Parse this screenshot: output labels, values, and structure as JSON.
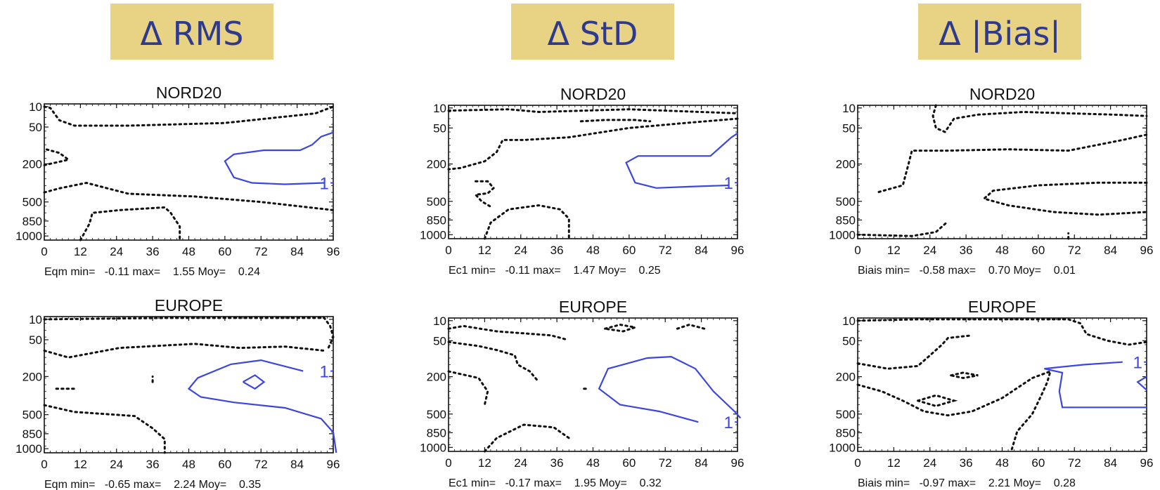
{
  "headers": [
    "Δ RMS",
    "Δ StD",
    "Δ |Bias|"
  ],
  "colors": {
    "header_bg": "#e8d283",
    "header_text": "#2e3a8c",
    "contour_positive": "#3b46e0",
    "contour_negative": "#111111"
  },
  "chart_data": [
    {
      "type": "contour",
      "title": "NORD20",
      "x_ticks": [
        "0",
        "12",
        "24",
        "36",
        "48",
        "60",
        "72",
        "84",
        "96"
      ],
      "y_ticks": [
        "10",
        "50",
        "200",
        "500",
        "850",
        "1000"
      ],
      "xlim": [
        0,
        96
      ],
      "ylim": [
        0,
        1
      ],
      "stats": {
        "name": "Eqm",
        "min": "-0.11",
        "max": "1.55",
        "moy": "0.24"
      },
      "contour_label": "1",
      "contour_label_at": [
        93,
        0.42
      ],
      "positive_contours": [
        [
          [
            93,
            0.42
          ],
          [
            80,
            0.41
          ],
          [
            69,
            0.42
          ],
          [
            63,
            0.46
          ],
          [
            60,
            0.58
          ],
          [
            63,
            0.63
          ],
          [
            73,
            0.66
          ],
          [
            85,
            0.66
          ],
          [
            89,
            0.7
          ],
          [
            92,
            0.76
          ],
          [
            96,
            0.79
          ]
        ]
      ],
      "negative_contours": [
        [
          [
            0,
            0.98
          ],
          [
            2,
            0.97
          ],
          [
            5,
            0.88
          ],
          [
            10,
            0.84
          ],
          [
            28,
            0.84
          ],
          [
            60,
            0.86
          ],
          [
            90,
            0.93
          ],
          [
            96,
            0.98
          ]
        ],
        [
          [
            0,
            0.35
          ],
          [
            5,
            0.38
          ],
          [
            14,
            0.42
          ],
          [
            28,
            0.34
          ],
          [
            50,
            0.32
          ],
          [
            72,
            0.28
          ],
          [
            96,
            0.22
          ]
        ],
        [
          [
            0,
            0.55
          ],
          [
            8,
            0.59
          ],
          [
            5,
            0.64
          ],
          [
            0,
            0.67
          ]
        ],
        [
          [
            12,
            0
          ],
          [
            15,
            0.12
          ],
          [
            16,
            0.2
          ],
          [
            25,
            0.22
          ],
          [
            40,
            0.24
          ],
          [
            42,
            0.2
          ],
          [
            45,
            0.1
          ],
          [
            45,
            0
          ]
        ]
      ]
    },
    {
      "type": "contour",
      "title": "NORD20",
      "x_ticks": [
        "0",
        "12",
        "24",
        "36",
        "48",
        "60",
        "72",
        "84",
        "96"
      ],
      "y_ticks": [
        "10",
        "50",
        "200",
        "500",
        "850",
        "1000"
      ],
      "xlim": [
        0,
        96
      ],
      "ylim": [
        0,
        1
      ],
      "stats": {
        "name": "Ec1",
        "min": "-0.11",
        "max": "1.47",
        "moy": "0.25"
      },
      "contour_label": "1",
      "contour_label_at": [
        93,
        0.42
      ],
      "positive_contours": [
        [
          [
            93,
            0.4
          ],
          [
            80,
            0.39
          ],
          [
            69,
            0.38
          ],
          [
            62,
            0.42
          ],
          [
            59,
            0.57
          ],
          [
            63,
            0.62
          ],
          [
            75,
            0.62
          ],
          [
            87,
            0.62
          ],
          [
            91,
            0.7
          ],
          [
            94,
            0.76
          ],
          [
            96,
            0.79
          ]
        ]
      ],
      "negative_contours": [
        [
          [
            0,
            0.96
          ],
          [
            20,
            0.97
          ],
          [
            30,
            0.95
          ],
          [
            60,
            0.97
          ],
          [
            96,
            0.94
          ]
        ],
        [
          [
            96,
            0.9
          ],
          [
            80,
            0.87
          ],
          [
            60,
            0.83
          ],
          [
            40,
            0.76
          ],
          [
            25,
            0.74
          ],
          [
            18,
            0.74
          ],
          [
            16,
            0.65
          ],
          [
            12,
            0.58
          ],
          [
            4,
            0.53
          ],
          [
            0,
            0.52
          ]
        ],
        [
          [
            44,
            0.88
          ],
          [
            52,
            0.89
          ],
          [
            62,
            0.89
          ],
          [
            67,
            0.88
          ]
        ],
        [
          [
            9,
            0.43
          ],
          [
            13,
            0.43
          ],
          [
            15,
            0.38
          ],
          [
            13,
            0.34
          ],
          [
            9,
            0.33
          ],
          [
            11,
            0.28
          ],
          [
            14,
            0.24
          ]
        ],
        [
          [
            12,
            0
          ],
          [
            14,
            0.12
          ],
          [
            20,
            0.22
          ],
          [
            30,
            0.25
          ],
          [
            37,
            0.22
          ],
          [
            40,
            0.15
          ],
          [
            40,
            0
          ]
        ]
      ]
    },
    {
      "type": "contour",
      "title": "NORD20",
      "x_ticks": [
        "0",
        "12",
        "24",
        "36",
        "48",
        "60",
        "72",
        "84",
        "96"
      ],
      "y_ticks": [
        "10",
        "50",
        "200",
        "500",
        "850",
        "1000"
      ],
      "xlim": [
        0,
        96
      ],
      "ylim": [
        0,
        1
      ],
      "stats": {
        "name": "Biais",
        "min": "-0.58",
        "max": "0.70",
        "moy": "0.01"
      },
      "contour_label": "",
      "contour_label_at": [
        0,
        0
      ],
      "positive_contours": [],
      "negative_contours": [
        [
          [
            26,
            1
          ],
          [
            25,
            0.92
          ],
          [
            26,
            0.83
          ],
          [
            29,
            0.8
          ],
          [
            32,
            0.9
          ],
          [
            40,
            0.93
          ],
          [
            55,
            0.95
          ],
          [
            70,
            0.94
          ],
          [
            85,
            0.93
          ],
          [
            96,
            0.92
          ]
        ],
        [
          [
            7,
            0.35
          ],
          [
            15,
            0.4
          ],
          [
            17,
            0.57
          ],
          [
            18,
            0.66
          ],
          [
            30,
            0.66
          ],
          [
            50,
            0.67
          ],
          [
            70,
            0.66
          ],
          [
            88,
            0.74
          ],
          [
            96,
            0.78
          ]
        ],
        [
          [
            96,
            0.42
          ],
          [
            80,
            0.42
          ],
          [
            60,
            0.4
          ],
          [
            45,
            0.36
          ],
          [
            42,
            0.3
          ],
          [
            50,
            0.25
          ],
          [
            65,
            0.2
          ],
          [
            80,
            0.18
          ],
          [
            96,
            0.2
          ]
        ],
        [
          [
            0,
            0.03
          ],
          [
            18,
            0.02
          ],
          [
            26,
            0.05
          ],
          [
            30,
            0.13
          ]
        ],
        [
          [
            70,
            0
          ],
          [
            70,
            0.04
          ]
        ]
      ]
    },
    {
      "type": "contour",
      "title": "EUROPE",
      "x_ticks": [
        "0",
        "12",
        "24",
        "36",
        "48",
        "60",
        "72",
        "84",
        "96"
      ],
      "y_ticks": [
        "10",
        "50",
        "200",
        "500",
        "850",
        "1000"
      ],
      "xlim": [
        0,
        96
      ],
      "ylim": [
        0,
        1
      ],
      "stats": {
        "name": "Eqm",
        "min": "-0.65",
        "max": "2.24",
        "moy": "0.35"
      },
      "contour_label": "1",
      "contour_label_at": [
        93,
        0.6
      ],
      "positive_contours": [
        [
          [
            86,
            0.6
          ],
          [
            72,
            0.68
          ],
          [
            62,
            0.65
          ],
          [
            51,
            0.55
          ],
          [
            48,
            0.47
          ],
          [
            52,
            0.41
          ],
          [
            63,
            0.37
          ],
          [
            80,
            0.33
          ],
          [
            92,
            0.25
          ],
          [
            96,
            0.15
          ],
          [
            97,
            0
          ]
        ],
        [
          [
            66,
            0.52
          ],
          [
            70,
            0.57
          ],
          [
            73,
            0.52
          ],
          [
            70,
            0.47
          ],
          [
            66,
            0.52
          ]
        ]
      ],
      "negative_contours": [
        [
          [
            0,
            0.98
          ],
          [
            40,
            0.99
          ],
          [
            93,
            0.99
          ],
          [
            95,
            0.93
          ],
          [
            96,
            0.85
          ],
          [
            94,
            0.75
          ]
        ],
        [
          [
            0,
            0.75
          ],
          [
            8,
            0.7
          ],
          [
            25,
            0.77
          ],
          [
            50,
            0.8
          ],
          [
            65,
            0.77
          ],
          [
            80,
            0.78
          ],
          [
            93,
            0.75
          ]
        ],
        [
          [
            0,
            0.35
          ],
          [
            10,
            0.3
          ],
          [
            30,
            0.27
          ],
          [
            36,
            0.18
          ],
          [
            40,
            0.1
          ],
          [
            40,
            0
          ]
        ],
        [
          [
            4,
            0.47
          ],
          [
            10,
            0.47
          ]
        ],
        [
          [
            36,
            0.52
          ],
          [
            36,
            0.56
          ]
        ]
      ]
    },
    {
      "type": "contour",
      "title": "EUROPE",
      "x_ticks": [
        "0",
        "12",
        "24",
        "36",
        "48",
        "60",
        "72",
        "84",
        "96"
      ],
      "y_ticks": [
        "10",
        "50",
        "200",
        "500",
        "850",
        "1000"
      ],
      "xlim": [
        0,
        96
      ],
      "ylim": [
        0,
        1
      ],
      "stats": {
        "name": "Ec1",
        "min": "-0.17",
        "max": "1.95",
        "moy": "0.32"
      },
      "contour_label": "1",
      "contour_label_at": [
        93,
        0.22
      ],
      "positive_contours": [
        [
          [
            83,
            0.22
          ],
          [
            70,
            0.3
          ],
          [
            57,
            0.35
          ],
          [
            50,
            0.47
          ],
          [
            53,
            0.62
          ],
          [
            66,
            0.7
          ],
          [
            74,
            0.71
          ],
          [
            82,
            0.62
          ],
          [
            88,
            0.45
          ],
          [
            95,
            0.3
          ],
          [
            97,
            0.25
          ]
        ]
      ],
      "negative_contours": [
        [
          [
            0,
            0.92
          ],
          [
            5,
            0.94
          ],
          [
            16,
            0.9
          ],
          [
            34,
            0.87
          ],
          [
            39,
            0.84
          ]
        ],
        [
          [
            0,
            0.82
          ],
          [
            10,
            0.79
          ],
          [
            16,
            0.76
          ],
          [
            22,
            0.72
          ],
          [
            23,
            0.65
          ],
          [
            27,
            0.6
          ],
          [
            30,
            0.52
          ]
        ],
        [
          [
            0,
            0.6
          ],
          [
            10,
            0.55
          ],
          [
            13,
            0.45
          ],
          [
            12,
            0.35
          ]
        ],
        [
          [
            12,
            0
          ],
          [
            16,
            0.1
          ],
          [
            25,
            0.2
          ],
          [
            35,
            0.18
          ],
          [
            40,
            0.1
          ]
        ],
        [
          [
            52,
            0.92
          ],
          [
            57,
            0.95
          ],
          [
            62,
            0.93
          ],
          [
            58,
            0.9
          ],
          [
            52,
            0.92
          ]
        ],
        [
          [
            76,
            0.92
          ],
          [
            80,
            0.95
          ],
          [
            85,
            0.92
          ]
        ],
        [
          [
            45,
            0.47
          ],
          [
            46,
            0.47
          ]
        ]
      ]
    },
    {
      "type": "contour",
      "title": "EUROPE",
      "x_ticks": [
        "0",
        "12",
        "24",
        "36",
        "48",
        "60",
        "72",
        "84",
        "96"
      ],
      "y_ticks": [
        "10",
        "50",
        "200",
        "500",
        "850",
        "1000"
      ],
      "xlim": [
        0,
        96
      ],
      "ylim": [
        0,
        1
      ],
      "stats": {
        "name": "Biais",
        "min": "-0.97",
        "max": "2.21",
        "moy": "0.28"
      },
      "contour_label": "1",
      "contour_label_at": [
        93,
        0.67
      ],
      "positive_contours": [
        [
          [
            88,
            0.67
          ],
          [
            75,
            0.65
          ],
          [
            62,
            0.62
          ],
          [
            68,
            0.59
          ],
          [
            67,
            0.45
          ],
          [
            68,
            0.33
          ],
          [
            78,
            0.33
          ],
          [
            96,
            0.33
          ]
        ],
        [
          [
            96,
            0.56
          ],
          [
            93,
            0.52
          ],
          [
            96,
            0.46
          ]
        ]
      ],
      "negative_contours": [
        [
          [
            0,
            0.98
          ],
          [
            20,
            0.99
          ],
          [
            70,
            0.99
          ],
          [
            74,
            0.96
          ],
          [
            76,
            0.88
          ],
          [
            83,
            0.83
          ],
          [
            90,
            0.8
          ],
          [
            96,
            0.82
          ]
        ],
        [
          [
            0,
            0.66
          ],
          [
            10,
            0.62
          ],
          [
            20,
            0.64
          ],
          [
            24,
            0.72
          ],
          [
            28,
            0.8
          ],
          [
            30,
            0.85
          ],
          [
            38,
            0.87
          ]
        ],
        [
          [
            0,
            0.5
          ],
          [
            8,
            0.45
          ],
          [
            15,
            0.38
          ],
          [
            22,
            0.3
          ],
          [
            30,
            0.27
          ],
          [
            38,
            0.3
          ],
          [
            48,
            0.4
          ],
          [
            58,
            0.55
          ],
          [
            64,
            0.6
          ],
          [
            63,
            0.52
          ],
          [
            61,
            0.42
          ],
          [
            58,
            0.28
          ],
          [
            53,
            0.15
          ],
          [
            51,
            0
          ]
        ],
        [
          [
            20,
            0.38
          ],
          [
            26,
            0.42
          ],
          [
            32,
            0.38
          ],
          [
            26,
            0.34
          ],
          [
            20,
            0.38
          ]
        ],
        [
          [
            31,
            0.57
          ],
          [
            35,
            0.59
          ],
          [
            40,
            0.57
          ],
          [
            35,
            0.55
          ],
          [
            31,
            0.57
          ]
        ]
      ]
    }
  ]
}
